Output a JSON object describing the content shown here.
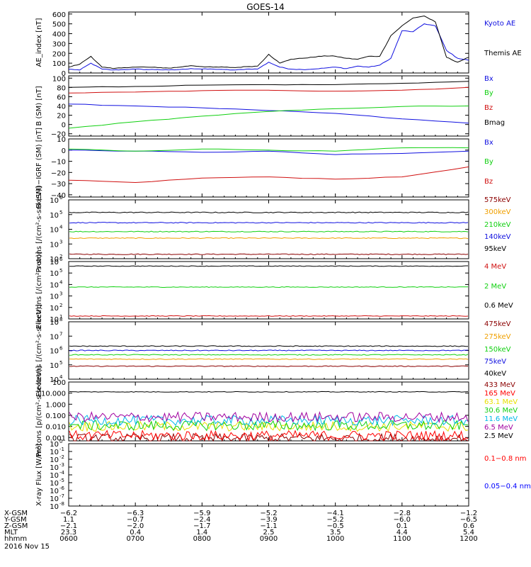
{
  "title": "GOES-14",
  "colors": {
    "black": "#000000",
    "blue": "#1010e0",
    "green": "#10d010",
    "red": "#d01010",
    "darkred": "#8b0000",
    "orange": "#f0a000",
    "yellow": "#e8e000",
    "cyan": "#00b8e8",
    "purple": "#a000a0",
    "brightred": "#ff0000",
    "flux_blue": "#0000ff"
  },
  "chart_data": [
    {
      "type": "line",
      "ylabel": "AE_index [nT]",
      "yticks": [
        "600",
        "500",
        "400",
        "300",
        "200",
        "100",
        "0"
      ],
      "ylim": [
        0,
        620
      ],
      "series": [
        {
          "name": "Kyoto AE",
          "color": "blue",
          "x": [
            600,
            610,
            620,
            630,
            640,
            650,
            700,
            710,
            720,
            730,
            740,
            750,
            800,
            810,
            820,
            830,
            840,
            850,
            900,
            910,
            920,
            930,
            940,
            950,
            1000,
            1010,
            1020,
            1030,
            1040,
            1050,
            1100,
            1110,
            1120,
            1130,
            1140,
            1150,
            1200
          ],
          "y": [
            40,
            30,
            100,
            40,
            30,
            35,
            40,
            35,
            35,
            30,
            35,
            45,
            40,
            40,
            35,
            30,
            40,
            40,
            110,
            60,
            40,
            35,
            40,
            50,
            60,
            45,
            70,
            60,
            80,
            150,
            430,
            420,
            500,
            480,
            230,
            150,
            130
          ]
        },
        {
          "name": "Themis AE",
          "color": "black",
          "x": [
            600,
            610,
            620,
            630,
            640,
            650,
            700,
            710,
            720,
            730,
            740,
            750,
            800,
            810,
            820,
            830,
            840,
            850,
            900,
            910,
            920,
            930,
            940,
            950,
            1000,
            1010,
            1020,
            1030,
            1040,
            1050,
            1100,
            1110,
            1120,
            1130,
            1140,
            1150,
            1200
          ],
          "y": [
            60,
            90,
            170,
            60,
            45,
            55,
            60,
            60,
            55,
            50,
            60,
            75,
            65,
            60,
            60,
            55,
            65,
            70,
            190,
            100,
            140,
            150,
            160,
            175,
            170,
            150,
            140,
            170,
            170,
            380,
            480,
            560,
            580,
            520,
            160,
            110,
            160
          ]
        }
      ]
    },
    {
      "type": "line",
      "ylabel": "B (SM) [nT]",
      "yticks": [
        "100",
        "80",
        "60",
        "40",
        "20",
        "0",
        "−20"
      ],
      "ylim": [
        -25,
        105
      ],
      "series": [
        {
          "name": "Bx",
          "color": "blue",
          "x": [
            600,
            700,
            800,
            900,
            1000,
            1100,
            1200
          ],
          "y": [
            44,
            40,
            36,
            30,
            24,
            12,
            3
          ]
        },
        {
          "name": "By",
          "color": "green",
          "x": [
            600,
            700,
            800,
            900,
            1000,
            1100,
            1200
          ],
          "y": [
            -8,
            6,
            18,
            28,
            34,
            39,
            40
          ]
        },
        {
          "name": "Bz",
          "color": "red",
          "x": [
            600,
            700,
            800,
            900,
            1000,
            1100,
            1200
          ],
          "y": [
            68,
            70,
            73,
            74,
            72,
            74,
            80
          ]
        },
        {
          "name": "Bmag",
          "color": "black",
          "x": [
            600,
            700,
            800,
            900,
            1000,
            1100,
            1200
          ],
          "y": [
            80,
            82,
            85,
            86,
            86,
            89,
            93
          ]
        }
      ]
    },
    {
      "type": "line",
      "ylabel": "B (SM)−IGRF (SM) [nT]",
      "yticks": [
        "10",
        "0",
        "−10",
        "−20",
        "−30",
        "−40"
      ],
      "ylim": [
        -42,
        10
      ],
      "series": [
        {
          "name": "Bx",
          "color": "blue",
          "x": [
            600,
            700,
            800,
            900,
            1000,
            1100,
            1200
          ],
          "y": [
            0,
            -1,
            -2,
            -1,
            -4,
            -3,
            -1
          ]
        },
        {
          "name": "By",
          "color": "green",
          "x": [
            600,
            700,
            800,
            900,
            1000,
            1100,
            1200
          ],
          "y": [
            1,
            -1,
            1,
            0,
            -1,
            2,
            2
          ]
        },
        {
          "name": "Bz",
          "color": "red",
          "x": [
            600,
            700,
            800,
            900,
            1000,
            1100,
            1200
          ],
          "y": [
            -27,
            -29,
            -25,
            -24,
            -26,
            -24,
            -15
          ]
        }
      ]
    },
    {
      "type": "line",
      "log": true,
      "ylabel": "Protons [/(cm²-s-sr-keV)]",
      "ylim": [
        100,
        1000000
      ],
      "series": [
        {
          "name": "575keV",
          "color": "darkred",
          "value": 200
        },
        {
          "name": "300keV",
          "color": "orange",
          "value": 2500
        },
        {
          "name": "210keV",
          "color": "green",
          "value": 7000
        },
        {
          "name": "140keV",
          "color": "blue",
          "value": 28000
        },
        {
          "name": "95keV",
          "color": "black",
          "value": 140000
        }
      ]
    },
    {
      "type": "line",
      "log": true,
      "ylabel": "Electrons [/(cm²-s-sr)]",
      "ylim": [
        10,
        1000000
      ],
      "series": [
        {
          "name": "4 MeV",
          "color": "red",
          "value": 18
        },
        {
          "name": "2 MeV",
          "color": "green",
          "value": 6000
        },
        {
          "name": "0.6 MeV",
          "color": "black",
          "value": 400000
        }
      ]
    },
    {
      "type": "line",
      "log": true,
      "ylabel": "Electrons [/(cm²-s-sr-keV)]",
      "ylim": [
        10000,
        100000000
      ],
      "series": [
        {
          "name": "475keV",
          "color": "darkred",
          "value": 80000
        },
        {
          "name": "275keV",
          "color": "orange",
          "value": 250000
        },
        {
          "name": "150keV",
          "color": "green",
          "value": 500000
        },
        {
          "name": "75keV",
          "color": "blue",
          "value": 1000000
        },
        {
          "name": "40keV",
          "color": "black",
          "value": 2000000
        }
      ]
    },
    {
      "type": "line",
      "log": true,
      "ylabel": "Protons [p/(cm²-s-sr-keV)]",
      "yticks": [
        "100",
        "10.000",
        "1.000",
        "0.100",
        "0.010",
        "0.001"
      ],
      "ylim": [
        0.0005,
        100
      ],
      "series": [
        {
          "name": "433 MeV",
          "color": "darkred",
          "value": 0.0008
        },
        {
          "name": "165 MeV",
          "color": "brightred",
          "value": 0.0015
        },
        {
          "name": "63.1 MeV",
          "color": "yellow",
          "value": 0.01
        },
        {
          "name": "30.6 MeV",
          "color": "green",
          "value": 0.012
        },
        {
          "name": "11.6 MeV",
          "color": "cyan",
          "value": 0.035
        },
        {
          "name": "6.5 MeV",
          "color": "purple",
          "value": 0.07
        },
        {
          "name": "2.5 MeV",
          "color": "black",
          "value": 13
        }
      ]
    },
    {
      "type": "line",
      "log": true,
      "ylabel": "X-ray Flux [W/m²]",
      "ylim": [
        1e-08,
        1
      ],
      "series": [
        {
          "name": "0.1−0.8 nm",
          "color": "brightred"
        },
        {
          "name": "0.05−0.4 nm",
          "color": "flux_blue"
        }
      ]
    }
  ],
  "footer": {
    "rows": [
      {
        "label": "X-GSM",
        "values": [
          "−6.2",
          "−6.3",
          "−5.9",
          "−5.2",
          "−4.1",
          "−2.8",
          "−1.2"
        ]
      },
      {
        "label": "Y-GSM",
        "values": [
          "1.1",
          "−0.7",
          "−2.4",
          "−3.9",
          "−5.2",
          "−6.0",
          "−6.5"
        ]
      },
      {
        "label": "Z-GSM",
        "values": [
          "−2.1",
          "−2.0",
          "−1.7",
          "−1.1",
          "−0.5",
          "0.1",
          "0.6"
        ]
      },
      {
        "label": "MLT",
        "values": [
          "23.3",
          "0.4",
          "1.4",
          "2.5",
          "3.5",
          "4.4",
          "5.4"
        ]
      },
      {
        "label": "hhmm",
        "values": [
          "0600",
          "0700",
          "0800",
          "0900",
          "1000",
          "1100",
          "1200"
        ]
      }
    ],
    "date": "2016 Nov 15"
  }
}
